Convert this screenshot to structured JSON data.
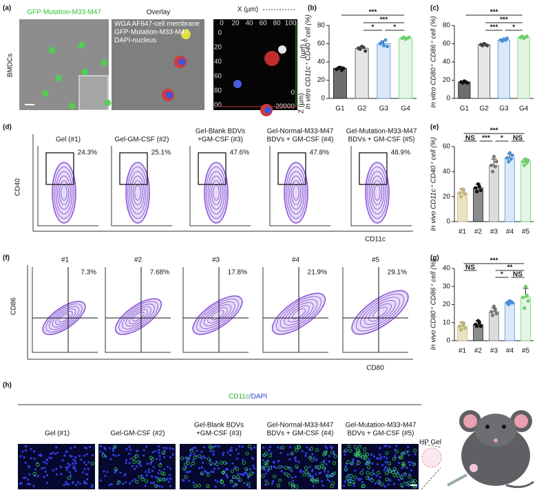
{
  "panel_a": {
    "label": "(a)",
    "title": "GFP-Mutation-M33-M47",
    "side_label": "BMDCs",
    "overlay_title": "Overlay",
    "overlay_legend": [
      "WGA AF647-cell membrane",
      "GFP-Mutation-M33-M47",
      "DAPI-nucleus"
    ],
    "view3d": {
      "x_axis": "X (µm)",
      "y_axis": "Y (µm)",
      "z_axis": "Z (µm)",
      "x_ticks": [
        "0",
        "20",
        "40",
        "60",
        "80",
        "100"
      ],
      "y_ticks": [
        "0",
        "20",
        "40",
        "60",
        "80",
        "100"
      ],
      "z_ticks": [
        "0",
        "20000"
      ]
    }
  },
  "chart_data": [
    {
      "type": "bar",
      "panel": "(b)",
      "y_label": "In vitro CD11c⁺ CD40⁺ cell (%)",
      "categories": [
        "G1",
        "G2",
        "G3",
        "G4"
      ],
      "values": [
        33,
        55,
        60,
        66
      ],
      "errors": [
        2,
        2,
        3,
        1
      ],
      "points": [
        [
          32,
          33,
          34,
          31,
          33
        ],
        [
          55,
          54,
          57,
          56,
          52
        ],
        [
          60,
          62,
          58,
          64,
          57
        ],
        [
          66,
          67,
          65,
          66,
          67
        ]
      ],
      "colors": [
        "#6e6e6e",
        "#e6e6e6",
        "#dbe8f7",
        "#e3f6e3"
      ],
      "point_colors": [
        "#111111",
        "#444444",
        "#4a90d9",
        "#6fd06f"
      ],
      "ylim": [
        0,
        80
      ],
      "yticks": [
        0,
        20,
        40,
        60,
        80
      ],
      "significance": [
        {
          "label": "***",
          "from": "G1",
          "to": "G4"
        },
        {
          "label": "***",
          "from": "G2",
          "to": "G4"
        },
        {
          "label": "*",
          "from": "G2",
          "to": "G3"
        },
        {
          "label": "*",
          "from": "G3",
          "to": "G4"
        }
      ]
    },
    {
      "type": "bar",
      "panel": "(c)",
      "y_label": "In vitro CD80⁺ CD86⁺ cell (%)",
      "categories": [
        "G1",
        "G2",
        "G3",
        "G4"
      ],
      "values": [
        18,
        59,
        64,
        67
      ],
      "errors": [
        1,
        1,
        1,
        1
      ],
      "points": [
        [
          18,
          17,
          19,
          18,
          17
        ],
        [
          59,
          58,
          60,
          59,
          58
        ],
        [
          64,
          63,
          65,
          64,
          66
        ],
        [
          67,
          68,
          66,
          67,
          68
        ]
      ],
      "colors": [
        "#6e6e6e",
        "#e6e6e6",
        "#dbe8f7",
        "#e3f6e3"
      ],
      "point_colors": [
        "#111111",
        "#444444",
        "#4a90d9",
        "#6fd06f"
      ],
      "ylim": [
        0,
        80
      ],
      "yticks": [
        0,
        20,
        40,
        60,
        80
      ],
      "significance": [
        {
          "label": "***",
          "from": "G1",
          "to": "G4"
        },
        {
          "label": "***",
          "from": "G2",
          "to": "G4"
        },
        {
          "label": "***",
          "from": "G2",
          "to": "G3"
        },
        {
          "label": "*",
          "from": "G3",
          "to": "G4"
        }
      ]
    },
    {
      "type": "bar",
      "panel": "(e)",
      "y_label": "In vivo CD11c⁺ CD40⁺ cell (%)",
      "categories": [
        "#1",
        "#2",
        "#3",
        "#4",
        "#5"
      ],
      "values": [
        23,
        27,
        45,
        51,
        48
      ],
      "errors": [
        3,
        3,
        5,
        3,
        2
      ],
      "points": [
        [
          23,
          20,
          26,
          24,
          22
        ],
        [
          27,
          24,
          30,
          28,
          25
        ],
        [
          45,
          40,
          52,
          44,
          48
        ],
        [
          51,
          48,
          55,
          50,
          53
        ],
        [
          48,
          45,
          50,
          47,
          49
        ]
      ],
      "colors": [
        "#e9e2c3",
        "#8c8c8c",
        "#dcdcdc",
        "#dbe8f7",
        "#e3f6e3"
      ],
      "point_colors": [
        "#c4b476",
        "#111111",
        "#777777",
        "#4a90d9",
        "#6fd06f"
      ],
      "ylim": [
        0,
        60
      ],
      "yticks": [
        0,
        20,
        40,
        60
      ],
      "significance": [
        {
          "label": "***",
          "from": "#1",
          "to": "#5"
        },
        {
          "label": "***",
          "from": "#2",
          "to": "#3"
        },
        {
          "label": "*",
          "from": "#3",
          "to": "#4"
        },
        {
          "label": "NS",
          "from": "#4",
          "to": "#5"
        },
        {
          "label": "NS",
          "from": "#1",
          "to": "#2"
        }
      ]
    },
    {
      "type": "bar",
      "panel": "(g)",
      "y_label": "In vivo CD80⁺ CD86⁺ cell (%)",
      "categories": [
        "#1",
        "#2",
        "#3",
        "#4",
        "#5"
      ],
      "values": [
        8,
        9,
        16,
        21,
        24
      ],
      "errors": [
        2,
        2,
        2,
        1,
        5
      ],
      "points": [
        [
          8,
          6,
          10,
          9,
          7
        ],
        [
          9,
          8,
          11,
          10,
          8
        ],
        [
          16,
          14,
          19,
          17,
          15
        ],
        [
          21,
          20,
          22,
          21,
          21
        ],
        [
          24,
          18,
          30,
          25,
          22
        ]
      ],
      "colors": [
        "#e9e2c3",
        "#8c8c8c",
        "#dcdcdc",
        "#dbe8f7",
        "#e3f6e3"
      ],
      "point_colors": [
        "#c4b476",
        "#111111",
        "#777777",
        "#4a90d9",
        "#6fd06f"
      ],
      "ylim": [
        0,
        40
      ],
      "yticks": [
        0,
        10,
        20,
        30,
        40
      ],
      "significance": [
        {
          "label": "***",
          "from": "#1",
          "to": "#5"
        },
        {
          "label": "**",
          "from": "#3",
          "to": "#5"
        },
        {
          "label": "*",
          "from": "#3",
          "to": "#4"
        },
        {
          "label": "NS",
          "from": "#4",
          "to": "#5"
        },
        {
          "label": "NS",
          "from": "#1",
          "to": "#2"
        }
      ]
    }
  ],
  "panel_d": {
    "label": "(d)",
    "y_axis": "CD40",
    "x_axis": "CD11c",
    "panels": [
      {
        "title": [
          "Gel (#1)"
        ],
        "gate": "24.3%"
      },
      {
        "title": [
          "Gel-GM-CSF (#2)"
        ],
        "gate": "25.1%"
      },
      {
        "title": [
          "Gel-Blank BDVs",
          "+GM-CSF (#3)"
        ],
        "gate": "47.6%"
      },
      {
        "title": [
          "Gel-Normal-M33-M47",
          "BDVs + GM-CSF (#4)"
        ],
        "gate": "47.8%"
      },
      {
        "title": [
          "Gel-Mutation-M33-M47",
          "BDVs + GM-CSF (#5)"
        ],
        "gate": "48.9%"
      }
    ]
  },
  "panel_f": {
    "label": "(f)",
    "y_axis": "CD86",
    "x_axis": "CD80",
    "panels": [
      {
        "title": "#1",
        "gate": "7.3%"
      },
      {
        "title": "#2",
        "gate": "7.68%"
      },
      {
        "title": "#3",
        "gate": "17.8%"
      },
      {
        "title": "#4",
        "gate": "21.9%"
      },
      {
        "title": "#5",
        "gate": "29.1%"
      }
    ]
  },
  "panel_h": {
    "label": "(h)",
    "stain": [
      "CD11c",
      "/DAPI"
    ],
    "gel_label": "HP Gel",
    "groups": [
      [
        "Gel (#1)"
      ],
      [
        "Gel-GM-CSF (#2)"
      ],
      [
        "Gel-Blank BDVs",
        "+GM-CSF (#3)"
      ],
      [
        "Gel-Normal-M33-M47",
        "BDVs + GM-CSF (#4)"
      ],
      [
        "Gel-Mutation-M33-M47",
        "BDVs + GM-CSF (#5)"
      ]
    ]
  }
}
